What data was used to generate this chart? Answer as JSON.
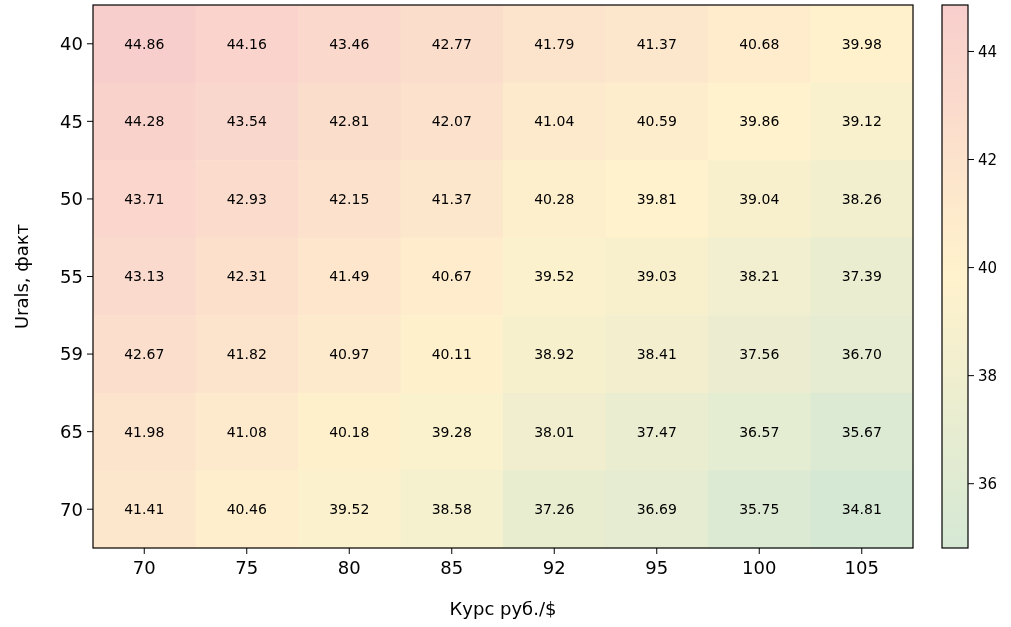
{
  "chart_data": {
    "type": "heatmap",
    "xlabel": "Курс руб./$",
    "ylabel": "Urals, факт",
    "categories": [
      "70",
      "75",
      "80",
      "85",
      "92",
      "95",
      "100",
      "105"
    ],
    "y_categories": [
      "40",
      "45",
      "50",
      "55",
      "59",
      "65",
      "70"
    ],
    "cells": [
      [
        44.86,
        44.16,
        43.46,
        42.77,
        41.79,
        41.37,
        40.68,
        39.98
      ],
      [
        44.28,
        43.54,
        42.81,
        42.07,
        41.04,
        40.59,
        39.86,
        39.12
      ],
      [
        43.71,
        42.93,
        42.15,
        41.37,
        40.28,
        39.81,
        39.04,
        38.26
      ],
      [
        43.13,
        42.31,
        41.49,
        40.67,
        39.52,
        39.03,
        38.21,
        37.39
      ],
      [
        42.67,
        41.82,
        40.97,
        40.11,
        38.92,
        38.41,
        37.56,
        36.7
      ],
      [
        41.98,
        41.08,
        40.18,
        39.28,
        38.01,
        37.47,
        36.57,
        35.67
      ],
      [
        41.41,
        40.46,
        39.52,
        38.58,
        37.26,
        36.69,
        35.75,
        34.81
      ]
    ],
    "cell_labels": [
      [
        "44.86",
        "44.16",
        "43.46",
        "42.77",
        "41.79",
        "41.37",
        "40.68",
        "39.98"
      ],
      [
        "44.28",
        "43.54",
        "42.81",
        "42.07",
        "41.04",
        "40.59",
        "39.86",
        "39.12"
      ],
      [
        "43.71",
        "42.93",
        "42.15",
        "41.37",
        "40.28",
        "39.81",
        "39.04",
        "38.26"
      ],
      [
        "43.13",
        "42.31",
        "41.49",
        "40.67",
        "39.52",
        "39.03",
        "38.21",
        "37.39"
      ],
      [
        "42.67",
        "41.82",
        "40.97",
        "40.11",
        "38.92",
        "38.41",
        "37.56",
        "36.70"
      ],
      [
        "41.98",
        "41.08",
        "40.18",
        "39.28",
        "38.01",
        "37.47",
        "36.57",
        "35.67"
      ],
      [
        "41.41",
        "40.46",
        "39.52",
        "38.58",
        "37.26",
        "36.69",
        "35.75",
        "34.81"
      ]
    ],
    "clim": [
      34.81,
      44.86
    ],
    "cticks": [
      36,
      38,
      40,
      42,
      44
    ]
  }
}
